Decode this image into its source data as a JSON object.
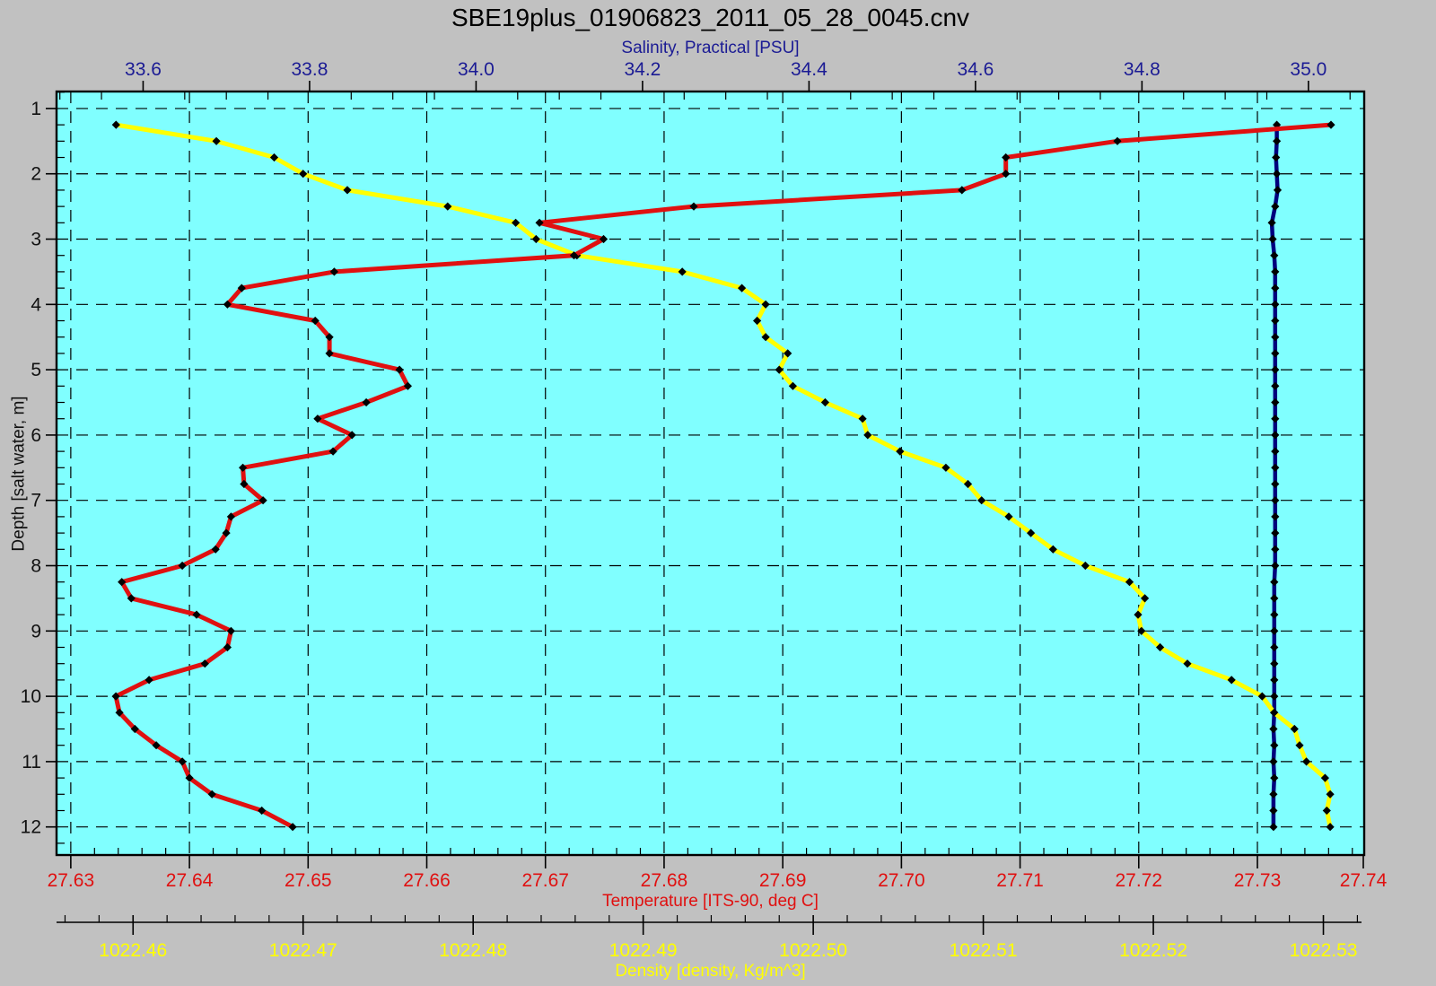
{
  "window": {
    "title": "SBE19plus_01906823_2011_05_28_0045.cnv"
  },
  "colors": {
    "background": "#c1c1c1",
    "plot_background": "#80ffff",
    "grid": "#000000",
    "temperature": "#e01010",
    "density": "#ffff00",
    "salinity_line": "#00007d",
    "salinity_text": "#1b1b94",
    "depth_text": "#111111",
    "marker": "#000000"
  },
  "chart_data": {
    "type": "line",
    "title": "SBE19plus_01906823_2011_05_28_0045.cnv",
    "grid": "dashed",
    "legend_position": "none",
    "axes": {
      "depth": {
        "label": "Depth [salt water, m]",
        "min": 0.74,
        "max": 12.43,
        "tick_start": 1,
        "tick_end": 12,
        "tick_step": 1,
        "minor_step": 0.25,
        "decimals": 0,
        "color": "#111111",
        "position": "left"
      },
      "salinity": {
        "label": "Salinity, Practical [PSU]",
        "min": 33.496,
        "max": 35.067,
        "tick_start": 33.6,
        "tick_end": 35.0,
        "tick_step": 0.2,
        "minor_step": 0.05,
        "decimals": 1,
        "color": "#1b1b94",
        "position": "top"
      },
      "temperature": {
        "label": "Temperature [ITS-90, deg C]",
        "min": 27.6288,
        "max": 27.739,
        "tick_start": 27.63,
        "tick_end": 27.74,
        "tick_step": 0.01,
        "minor_step": 0.002,
        "decimals": 2,
        "color": "#e01010",
        "position": "bottom"
      },
      "density": {
        "label": "Density [density, Kg/m^3]",
        "min": 1022.4555,
        "max": 1022.5324,
        "tick_start": 1022.46,
        "tick_end": 1022.53,
        "tick_step": 0.01,
        "minor_step": 0.002,
        "decimals": 2,
        "color": "#ffff00",
        "position": "bottom2"
      }
    },
    "series": [
      {
        "name": "Salinity, Practical [PSU]",
        "x_axis": "salinity",
        "color": "#00007d",
        "line_width": 4.5,
        "marker": "diamond",
        "marker_color": "#000000",
        "points": [
          [
            1.25,
            34.962
          ],
          [
            1.5,
            34.962
          ],
          [
            1.75,
            34.961
          ],
          [
            2,
            34.962
          ],
          [
            2.25,
            34.963
          ],
          [
            2.5,
            34.96
          ],
          [
            2.75,
            34.956
          ],
          [
            3,
            34.957
          ],
          [
            3.25,
            34.959
          ],
          [
            3.5,
            34.96
          ],
          [
            3.75,
            34.96
          ],
          [
            4,
            34.96
          ],
          [
            4.25,
            34.96
          ],
          [
            4.5,
            34.96
          ],
          [
            4.75,
            34.96
          ],
          [
            5,
            34.96
          ],
          [
            5.25,
            34.96
          ],
          [
            5.5,
            34.96
          ],
          [
            5.75,
            34.96
          ],
          [
            6,
            34.96
          ],
          [
            6.25,
            34.96
          ],
          [
            6.5,
            34.96
          ],
          [
            6.75,
            34.96
          ],
          [
            7,
            34.96
          ],
          [
            7.25,
            34.96
          ],
          [
            7.5,
            34.96
          ],
          [
            7.75,
            34.96
          ],
          [
            8,
            34.96
          ],
          [
            8.25,
            34.959
          ],
          [
            8.5,
            34.959
          ],
          [
            8.75,
            34.959
          ],
          [
            9,
            34.959
          ],
          [
            9.25,
            34.959
          ],
          [
            9.5,
            34.959
          ],
          [
            9.75,
            34.959
          ],
          [
            10,
            34.959
          ],
          [
            10.25,
            34.959
          ],
          [
            10.5,
            34.958
          ],
          [
            10.75,
            34.959
          ],
          [
            11,
            34.958
          ],
          [
            11.25,
            34.959
          ],
          [
            11.5,
            34.958
          ],
          [
            11.75,
            34.958
          ],
          [
            12,
            34.958
          ]
        ]
      },
      {
        "name": "Density [density, Kg/m^3]",
        "x_axis": "density",
        "color": "#ffff00",
        "line_width": 5,
        "marker": "diamond",
        "marker_color": "#000000",
        "points": [
          [
            1.25,
            1022.459
          ],
          [
            1.5,
            1022.4649
          ],
          [
            1.75,
            1022.4683
          ],
          [
            2,
            1022.47
          ],
          [
            2.25,
            1022.4726
          ],
          [
            2.5,
            1022.4785
          ],
          [
            2.75,
            1022.4825
          ],
          [
            3,
            1022.4837
          ],
          [
            3.25,
            1022.4861
          ],
          [
            3.5,
            1022.4923
          ],
          [
            3.75,
            1022.4958
          ],
          [
            4,
            1022.4972
          ],
          [
            4.25,
            1022.4967
          ],
          [
            4.5,
            1022.4972
          ],
          [
            4.75,
            1022.4985
          ],
          [
            5,
            1022.498
          ],
          [
            5.25,
            1022.4988
          ],
          [
            5.5,
            1022.5007
          ],
          [
            5.75,
            1022.5029
          ],
          [
            6,
            1022.5032
          ],
          [
            6.25,
            1022.5051
          ],
          [
            6.5,
            1022.5078
          ],
          [
            6.75,
            1022.5091
          ],
          [
            7,
            1022.5099
          ],
          [
            7.25,
            1022.5115
          ],
          [
            7.5,
            1022.5128
          ],
          [
            7.75,
            1022.5141
          ],
          [
            8,
            1022.516
          ],
          [
            8.25,
            1022.5186
          ],
          [
            8.5,
            1022.5195
          ],
          [
            8.75,
            1022.5191
          ],
          [
            9,
            1022.5193
          ],
          [
            9.25,
            1022.5204
          ],
          [
            9.5,
            1022.522
          ],
          [
            9.75,
            1022.5246
          ],
          [
            10,
            1022.5264
          ],
          [
            10.25,
            1022.5271
          ],
          [
            10.5,
            1022.5283
          ],
          [
            10.75,
            1022.5286
          ],
          [
            11,
            1022.529
          ],
          [
            11.25,
            1022.5301
          ],
          [
            11.5,
            1022.5304
          ],
          [
            11.75,
            1022.5302
          ],
          [
            12,
            1022.5304
          ]
        ]
      },
      {
        "name": "Temperature [ITS-90, deg C]",
        "x_axis": "temperature",
        "color": "#e01010",
        "line_width": 5,
        "marker": "diamond",
        "marker_color": "#000000",
        "points": [
          [
            1.25,
            27.7362
          ],
          [
            1.5,
            27.7182
          ],
          [
            1.75,
            27.7088
          ],
          [
            2,
            27.7088
          ],
          [
            2.25,
            27.7051
          ],
          [
            2.5,
            27.6825
          ],
          [
            2.75,
            27.6695
          ],
          [
            3,
            27.6749
          ],
          [
            3.25,
            27.6724
          ],
          [
            3.5,
            27.6522
          ],
          [
            3.75,
            27.6444
          ],
          [
            4,
            27.6432
          ],
          [
            4.25,
            27.6506
          ],
          [
            4.5,
            27.6518
          ],
          [
            4.75,
            27.6518
          ],
          [
            5,
            27.6577
          ],
          [
            5.25,
            27.6584
          ],
          [
            5.5,
            27.6549
          ],
          [
            5.75,
            27.6508
          ],
          [
            6,
            27.6537
          ],
          [
            6.25,
            27.6521
          ],
          [
            6.5,
            27.6445
          ],
          [
            6.75,
            27.6446
          ],
          [
            7,
            27.6462
          ],
          [
            7.25,
            27.6435
          ],
          [
            7.5,
            27.6431
          ],
          [
            7.75,
            27.6422
          ],
          [
            8,
            27.6394
          ],
          [
            8.25,
            27.6343
          ],
          [
            8.5,
            27.6351
          ],
          [
            8.75,
            27.6406
          ],
          [
            9,
            27.6435
          ],
          [
            9.25,
            27.6432
          ],
          [
            9.5,
            27.6413
          ],
          [
            9.75,
            27.6366
          ],
          [
            10,
            27.6338
          ],
          [
            10.25,
            27.6341
          ],
          [
            10.5,
            27.6354
          ],
          [
            10.75,
            27.6372
          ],
          [
            11,
            27.6394
          ],
          [
            11.25,
            27.64
          ],
          [
            11.5,
            27.6419
          ],
          [
            11.75,
            27.6461
          ],
          [
            12,
            27.6487
          ]
        ]
      }
    ]
  }
}
